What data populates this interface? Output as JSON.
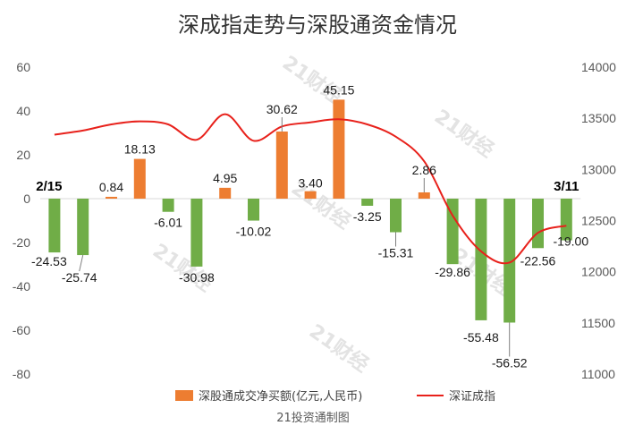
{
  "chart_data": {
    "type": "bar+line",
    "title": "深成指走势与深股通资金情况",
    "source": "21投资通制图",
    "watermark": "21财经",
    "categories": [
      "2/15",
      "",
      "",
      "",
      "",
      "",
      "",
      "",
      "",
      "",
      "",
      "",
      "",
      "",
      "",
      "",
      "",
      "",
      "3/11"
    ],
    "series": [
      {
        "name": "深股通成交净买额(亿元,人民币)",
        "type": "bar",
        "axis": "left",
        "positive_color": "#ed7d31",
        "negative_color": "#70ad47",
        "values": [
          -24.53,
          -25.74,
          0.84,
          18.13,
          -6.01,
          -30.98,
          4.95,
          -10.02,
          30.62,
          3.4,
          45.15,
          -3.25,
          -15.31,
          2.86,
          -29.86,
          -55.48,
          -56.52,
          -22.56,
          -19.0
        ],
        "labels": [
          "-24.53",
          "-25.74",
          "0.84",
          "18.13",
          "-6.01",
          "-30.98",
          "4.95",
          "-10.02",
          "30.62",
          "3.40",
          "45.15",
          "-3.25",
          "-15.31",
          "2.86",
          "-29.86",
          "-55.48",
          "-56.52",
          "-22.56",
          "-19.00"
        ]
      },
      {
        "name": "深证成指",
        "type": "line",
        "axis": "right",
        "color": "#e8211b",
        "values": [
          13340,
          13380,
          13440,
          13470,
          13440,
          13290,
          13540,
          13280,
          13420,
          13460,
          13490,
          13440,
          13320,
          13080,
          12550,
          12200,
          12090,
          12380,
          12450
        ]
      }
    ],
    "left_axis": {
      "min": -80,
      "max": 60,
      "step": 20,
      "ticks": [
        "60",
        "40",
        "20",
        "0",
        "-20",
        "-40",
        "-60",
        "-80"
      ]
    },
    "right_axis": {
      "min": 11000,
      "max": 14000,
      "step": 500,
      "ticks": [
        "14000",
        "13500",
        "13000",
        "12500",
        "12000",
        "11500",
        "11000"
      ]
    },
    "grid": false,
    "legend_position": "bottom"
  }
}
